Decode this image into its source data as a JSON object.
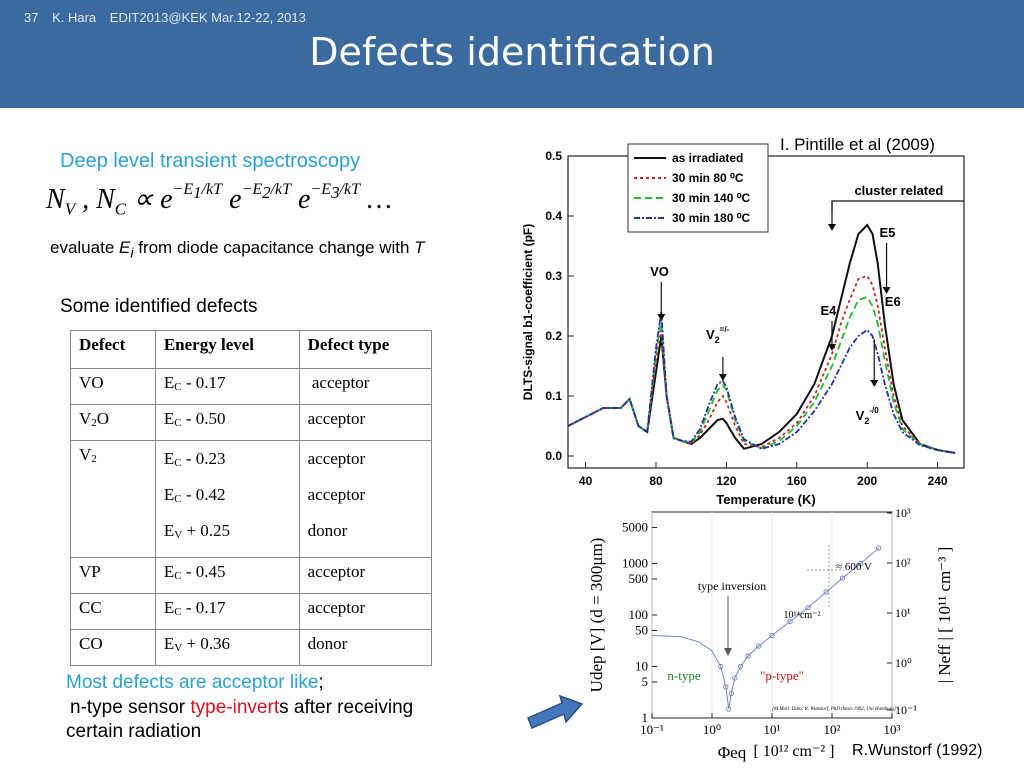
{
  "header": {
    "slide_number": "37",
    "author": "K. Hara",
    "event": "EDIT2013@KEK Mar.12-22, 2013",
    "title": "Defects identification"
  },
  "left": {
    "subtitle": "Deep level transient spectroscopy",
    "evaluate_pre": "evaluate ",
    "evaluate_mid": " from diode capacitance change with ",
    "some_defects": "Some identified defects",
    "table": {
      "headers": [
        "Defect",
        "Energy level",
        "Defect type"
      ],
      "rows": {
        "vo": {
          "defect": "VO",
          "level": "- 0.17",
          "type": "acceptor"
        },
        "v2o": {
          "defect_main": "V",
          "defect_sub": "2",
          "defect_rest": "O",
          "level": "- 0.50",
          "type": "acceptor"
        },
        "v2": {
          "defect_main": "V",
          "defect_sub": "2",
          "levels": [
            "- 0.23",
            "- 0.42",
            "+ 0.25"
          ],
          "types": [
            "acceptor",
            "acceptor",
            "donor"
          ]
        },
        "vp": {
          "defect": "VP",
          "level": "- 0.45",
          "type": "acceptor"
        },
        "cc": {
          "defect": "CC",
          "level": "- 0.17",
          "type": "acceptor"
        },
        "co": {
          "defect": "CO",
          "level": "+ 0.36",
          "type": "donor"
        }
      }
    },
    "note_blue": "Most defects are acceptor like",
    "note_semicolon": ";",
    "note2_pre": " n-type sensor ",
    "note2_red": "type-invert",
    "note2_post": "s after receiving",
    "note3": "certain radiation"
  },
  "citations": {
    "top": "I. Pintille et al (2009)",
    "bottom": "R.Wunstorf (1992)"
  },
  "chart_data": [
    {
      "type": "line",
      "xlabel": "Temperature (K)",
      "ylabel": "DLTS-signal b1-coefficient (pF)",
      "xlim": [
        30,
        255
      ],
      "ylim": [
        -0.02,
        0.5
      ],
      "x_ticks": [
        40,
        80,
        120,
        160,
        200,
        240
      ],
      "y_ticks": [
        "0.0",
        "0.1",
        "0.2",
        "0.3",
        "0.4",
        "0.5"
      ],
      "x": [
        30,
        40,
        50,
        60,
        65,
        70,
        75,
        80,
        83,
        86,
        90,
        95,
        100,
        105,
        110,
        115,
        118,
        120,
        125,
        130,
        140,
        150,
        160,
        170,
        180,
        185,
        190,
        195,
        200,
        203,
        206,
        210,
        215,
        220,
        230,
        240,
        250
      ],
      "series": [
        {
          "name": "as irradiated",
          "color": "#111111",
          "dash": "",
          "values": [
            0.05,
            0.065,
            0.08,
            0.08,
            0.095,
            0.05,
            0.04,
            0.14,
            0.2,
            0.1,
            0.03,
            0.025,
            0.02,
            0.03,
            0.045,
            0.06,
            0.062,
            0.055,
            0.03,
            0.012,
            0.02,
            0.04,
            0.07,
            0.12,
            0.2,
            0.26,
            0.32,
            0.37,
            0.385,
            0.37,
            0.32,
            0.22,
            0.12,
            0.06,
            0.02,
            0.01,
            0.005
          ]
        },
        {
          "name": "30 min 80 ⁰C",
          "color": "#cc2222",
          "dash": "3,3",
          "values": [
            0.05,
            0.065,
            0.08,
            0.08,
            0.095,
            0.05,
            0.04,
            0.16,
            0.21,
            0.1,
            0.03,
            0.025,
            0.02,
            0.035,
            0.06,
            0.09,
            0.1,
            0.09,
            0.05,
            0.02,
            0.015,
            0.03,
            0.055,
            0.1,
            0.17,
            0.22,
            0.26,
            0.295,
            0.3,
            0.285,
            0.25,
            0.18,
            0.1,
            0.05,
            0.02,
            0.01,
            0.005
          ]
        },
        {
          "name": "30 min 140 ⁰C",
          "color": "#22bb33",
          "dash": "7,4",
          "values": [
            0.05,
            0.065,
            0.08,
            0.08,
            0.095,
            0.05,
            0.04,
            0.17,
            0.23,
            0.1,
            0.03,
            0.025,
            0.022,
            0.04,
            0.075,
            0.11,
            0.118,
            0.11,
            0.06,
            0.025,
            0.013,
            0.025,
            0.05,
            0.09,
            0.15,
            0.19,
            0.23,
            0.26,
            0.265,
            0.25,
            0.22,
            0.16,
            0.09,
            0.045,
            0.02,
            0.01,
            0.005
          ]
        },
        {
          "name": "30 min 180 ⁰C",
          "color": "#2233aa",
          "dash": "6,2,2,2",
          "values": [
            0.05,
            0.065,
            0.08,
            0.08,
            0.095,
            0.05,
            0.04,
            0.18,
            0.24,
            0.1,
            0.03,
            0.025,
            0.024,
            0.045,
            0.085,
            0.12,
            0.125,
            0.115,
            0.065,
            0.028,
            0.012,
            0.02,
            0.04,
            0.075,
            0.12,
            0.15,
            0.18,
            0.2,
            0.21,
            0.2,
            0.17,
            0.12,
            0.07,
            0.04,
            0.018,
            0.01,
            0.005
          ]
        }
      ],
      "annotations": {
        "vo": "VO",
        "v2": "V",
        "v2_sub": "2",
        "v2_sup": "=/-",
        "cluster": "cluster related",
        "e5": "E5",
        "e6": "E6",
        "e4": "E4",
        "v2_0": "V",
        "v2_0_sub": "2",
        "v2_0_sup": "-/0"
      }
    },
    {
      "type": "scatter",
      "x_scale": "log",
      "y_scale": "log",
      "xlabel": "Φeq",
      "xlabel_unit": "[ 10¹² cm⁻² ]",
      "ylabel": "Udep [V]  (d = 300μm)",
      "y2label": "| Neff |  [ 10¹¹ cm⁻³ ]",
      "xlim": [
        0.1,
        1000
      ],
      "ylim": [
        1,
        10000
      ],
      "x_ticks": [
        "10⁻¹",
        "10⁰",
        "10¹",
        "10²",
        "10³"
      ],
      "y_ticks": [
        "1",
        "5",
        "10",
        "50",
        "100",
        "500",
        "1000",
        "5000"
      ],
      "y2_ticks": [
        "10⁻¹",
        "10⁰",
        "10¹",
        "10²",
        "10³"
      ],
      "x": [
        0.1,
        0.3,
        0.6,
        1.0,
        1.4,
        1.7,
        1.9,
        2.1,
        2.4,
        3,
        4,
        6,
        10,
        20,
        40,
        80,
        150,
        300,
        600
      ],
      "values": [
        40,
        38,
        30,
        20,
        10,
        4,
        1.5,
        3,
        6,
        10,
        16,
        25,
        40,
        75,
        140,
        280,
        520,
        1000,
        2000
      ],
      "annotations": {
        "inversion": "type inversion",
        "n_type": "n-type",
        "p_type": "\"p-type\"",
        "v600": "≈ 600 V",
        "flux": "10¹⁴cm⁻²",
        "source": "[M.Moll: Data: R. Wunstorf, PhD thesis 1992, Uni Hamburg]"
      }
    }
  ]
}
